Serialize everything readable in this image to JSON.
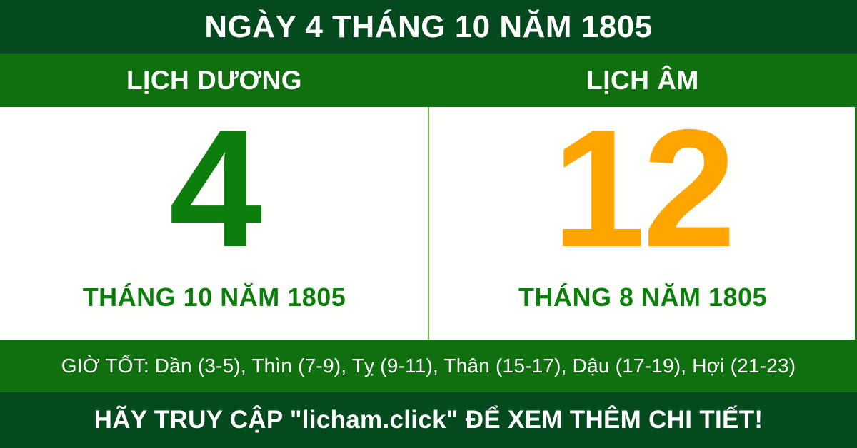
{
  "colors": {
    "dark_green": "#05491f",
    "band_green": "#10700f",
    "accent_green": "#0b7e0b",
    "accent_orange": "#ffa502",
    "divider_green": "#6abf4b",
    "edge_green": "#1b7412",
    "panel_bg": "#fffffd",
    "text_white": "#ffffff"
  },
  "top_bar": {
    "title": "NGÀY 4 THÁNG 10 NĂM 1805"
  },
  "calendar": {
    "solar": {
      "header": "LỊCH DƯƠNG",
      "day": "4",
      "label": "THÁNG 10 NĂM 1805"
    },
    "lunar": {
      "header": "LỊCH ÂM",
      "day": "12",
      "label": "THÁNG 8 NĂM 1805"
    }
  },
  "good_hours": {
    "text": "GIỜ TỐT: Dần (3-5), Thìn (7-9), Tỵ (9-11), Thân (15-17), Dậu (17-19), Hợi (21-23)"
  },
  "footer": {
    "text": "HÃY TRUY CẬP \"licham.click\" ĐỂ XEM THÊM CHI TIẾT!"
  }
}
